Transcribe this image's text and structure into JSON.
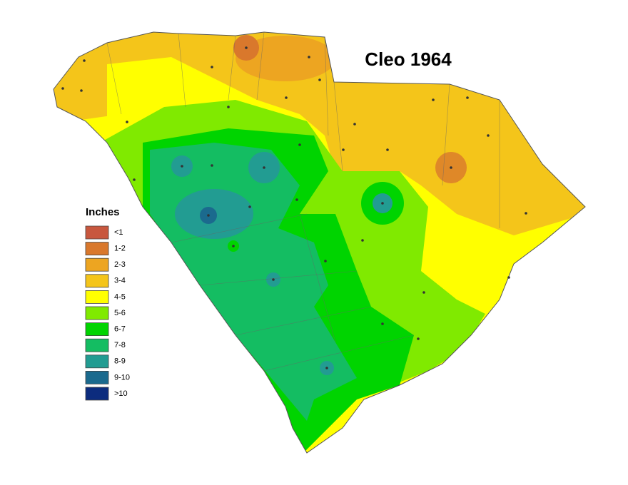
{
  "title": "Cleo 1964",
  "legend": {
    "title": "Inches",
    "items": [
      {
        "label": "<1",
        "color": "#c8573e"
      },
      {
        "label": "1-2",
        "color": "#d9782c"
      },
      {
        "label": "2-3",
        "color": "#eda521"
      },
      {
        "label": "3-4",
        "color": "#f4c51a"
      },
      {
        "label": "4-5",
        "color": "#ffff00"
      },
      {
        "label": "5-6",
        "color": "#80ea00"
      },
      {
        "label": "6-7",
        "color": "#00d400"
      },
      {
        "label": "7-8",
        "color": "#14bd62"
      },
      {
        "label": "8-9",
        "color": "#229c92"
      },
      {
        "label": "9-10",
        "color": "#1b6a8e"
      },
      {
        "label": ">10",
        "color": "#0c2c7e"
      }
    ]
  }
}
